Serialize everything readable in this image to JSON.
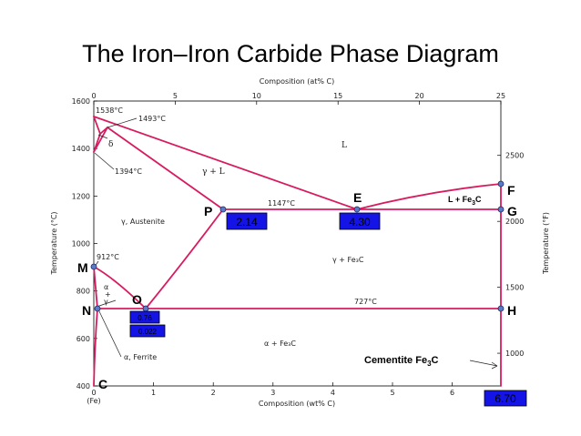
{
  "title": "The Iron–Iron Carbide Phase Diagram",
  "axes": {
    "top_label": "Composition (at% C)",
    "bottom_label": "Composition (wt% C)",
    "left_label": "Temperature (°C)",
    "right_label": "Temperature (°F)",
    "bottom_origin_label": "(Fe)",
    "x_ticks": [
      "0",
      "1",
      "2",
      "3",
      "4",
      "5",
      "6"
    ],
    "top_ticks": [
      "0",
      "5",
      "10",
      "15",
      "20",
      "25"
    ],
    "y_ticks": [
      "400",
      "600",
      "800",
      "1000",
      "1200",
      "1400",
      "1600"
    ],
    "f_ticks": [
      "1000",
      "1500",
      "2000",
      "2500"
    ]
  },
  "temperature_labels": {
    "t1538": "1538°C",
    "t1493": "1493°C",
    "t1394": "1394°C",
    "t1147": "1147°C",
    "t912": "912°C",
    "t727": "727°C"
  },
  "regions": {
    "liquid": "L",
    "gamma_l": "γ + L",
    "austenite": "γ, Austenite",
    "gamma_fe3c": "γ + Fe₃C",
    "alpha_fe3c": "α + Fe₃C",
    "ferrite": "α, Ferrite",
    "delta": "δ",
    "alpha": "α",
    "plus": "+",
    "gamma": "γ"
  },
  "points": {
    "F": "F",
    "G": "G",
    "E": "E",
    "P": "P",
    "M": "M",
    "O": "O",
    "N": "N",
    "H": "H",
    "C": "C"
  },
  "annotations": {
    "l_fe3c_prefix": "L + Fe",
    "l_fe3c_sub": "3",
    "l_fe3c_suffix": "C",
    "cementite_prefix": "Cementite Fe",
    "cementite_sub": "3",
    "cementite_suffix": "C"
  },
  "values": {
    "p_value": "2.14",
    "e_value": "4.30",
    "o_value": "0.76",
    "n_value": "0.022",
    "c_value": "6.70"
  },
  "colors": {
    "phase_line": "#d81b60",
    "point_marker": "#5b7cc4",
    "value_box": "#1414e6",
    "frame": "#000000"
  }
}
